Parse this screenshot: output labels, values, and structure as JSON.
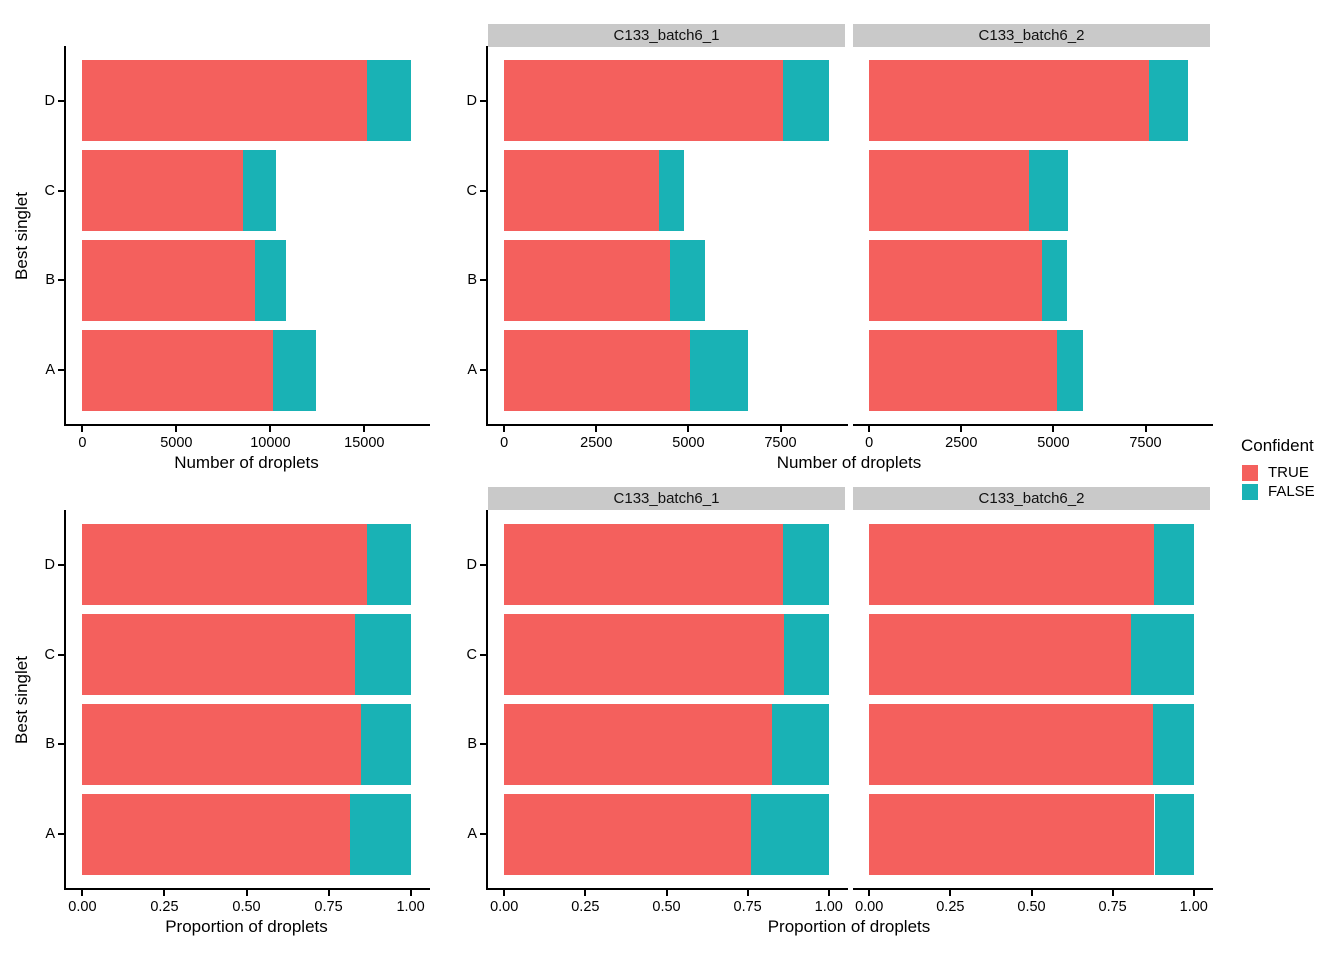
{
  "figure_title": "",
  "colors": {
    "true_fill": "#F4605D",
    "false_fill": "#19B2B5",
    "strip_background": "#C9C9C9",
    "axis": "#000000",
    "background": "#FFFFFF"
  },
  "legend": {
    "title": "Confident",
    "position": "right",
    "items": [
      {
        "label": "TRUE",
        "color": "#F4605D"
      },
      {
        "label": "FALSE",
        "color": "#19B2B5"
      }
    ]
  },
  "chart_data": [
    {
      "id": "droplet-counts-overall",
      "type": "bar",
      "orientation": "horizontal",
      "stacked": true,
      "grid": false,
      "position": "top-left",
      "title": "",
      "xlabel": "Number of droplets",
      "ylabel": "Best singlet",
      "categories": [
        "D",
        "C",
        "B",
        "A"
      ],
      "series": [
        {
          "name": "TRUE",
          "values": [
            15150,
            8560,
            9190,
            10130
          ]
        },
        {
          "name": "FALSE",
          "values": [
            2310,
            1730,
            1630,
            2290
          ]
        }
      ],
      "xmax": 17460,
      "x_ticks": [
        {
          "value": 0,
          "label": "0"
        },
        {
          "value": 5000,
          "label": "5000"
        },
        {
          "value": 10000,
          "label": "10000"
        },
        {
          "value": 15000,
          "label": "15000"
        }
      ]
    },
    {
      "id": "droplet-counts-by-sample",
      "type": "bar",
      "orientation": "horizontal",
      "stacked": true,
      "grid": false,
      "position": "top-right",
      "title": "",
      "xlabel": "Number of droplets",
      "ylabel": "",
      "categories": [
        "D",
        "C",
        "B",
        "A"
      ],
      "facets": [
        {
          "label": "C133_batch6_1",
          "series": [
            {
              "name": "TRUE",
              "values": [
                7560,
                4210,
                4490,
                5030
              ]
            },
            {
              "name": "FALSE",
              "values": [
                1250,
                680,
                950,
                1590
              ]
            }
          ]
        },
        {
          "label": "C133_batch6_2",
          "series": [
            {
              "name": "TRUE",
              "values": [
                7590,
                4350,
                4700,
                5100
              ]
            },
            {
              "name": "FALSE",
              "values": [
                1060,
                1050,
                680,
                700
              ]
            }
          ]
        }
      ],
      "xmax": 8810,
      "x_ticks": [
        {
          "value": 0,
          "label": "0"
        },
        {
          "value": 2500,
          "label": "2500"
        },
        {
          "value": 5000,
          "label": "5000"
        },
        {
          "value": 7500,
          "label": "7500"
        }
      ]
    },
    {
      "id": "droplet-proportions-overall",
      "type": "bar",
      "orientation": "horizontal",
      "stacked": true,
      "grid": false,
      "position": "bottom-left",
      "title": "",
      "xlabel": "Proportion of droplets",
      "ylabel": "Best singlet",
      "categories": [
        "D",
        "C",
        "B",
        "A"
      ],
      "series": [
        {
          "name": "TRUE",
          "values": [
            0.868,
            0.832,
            0.849,
            0.816
          ]
        },
        {
          "name": "FALSE",
          "values": [
            0.132,
            0.168,
            0.151,
            0.184
          ]
        }
      ],
      "xmax": 1.0,
      "x_ticks": [
        {
          "value": 0,
          "label": "0.00"
        },
        {
          "value": 0.25,
          "label": "0.25"
        },
        {
          "value": 0.5,
          "label": "0.50"
        },
        {
          "value": 0.75,
          "label": "0.75"
        },
        {
          "value": 1.0,
          "label": "1.00"
        }
      ]
    },
    {
      "id": "droplet-proportions-by-sample",
      "type": "bar",
      "orientation": "horizontal",
      "stacked": true,
      "grid": false,
      "position": "bottom-right",
      "title": "",
      "xlabel": "Proportion of droplets",
      "ylabel": "",
      "categories": [
        "D",
        "C",
        "B",
        "A"
      ],
      "facets": [
        {
          "label": "C133_batch6_1",
          "series": [
            {
              "name": "TRUE",
              "values": [
                0.858,
                0.861,
                0.825,
                0.76
              ]
            },
            {
              "name": "FALSE",
              "values": [
                0.142,
                0.139,
                0.175,
                0.24
              ]
            }
          ]
        },
        {
          "label": "C133_batch6_2",
          "series": [
            {
              "name": "TRUE",
              "values": [
                0.877,
                0.806,
                0.874,
                0.879
              ]
            },
            {
              "name": "FALSE",
              "values": [
                0.123,
                0.194,
                0.126,
                0.121
              ]
            }
          ]
        }
      ],
      "xmax": 1.0,
      "x_ticks": [
        {
          "value": 0,
          "label": "0.00"
        },
        {
          "value": 0.25,
          "label": "0.25"
        },
        {
          "value": 0.5,
          "label": "0.50"
        },
        {
          "value": 0.75,
          "label": "0.75"
        },
        {
          "value": 1.0,
          "label": "1.00"
        }
      ]
    }
  ]
}
